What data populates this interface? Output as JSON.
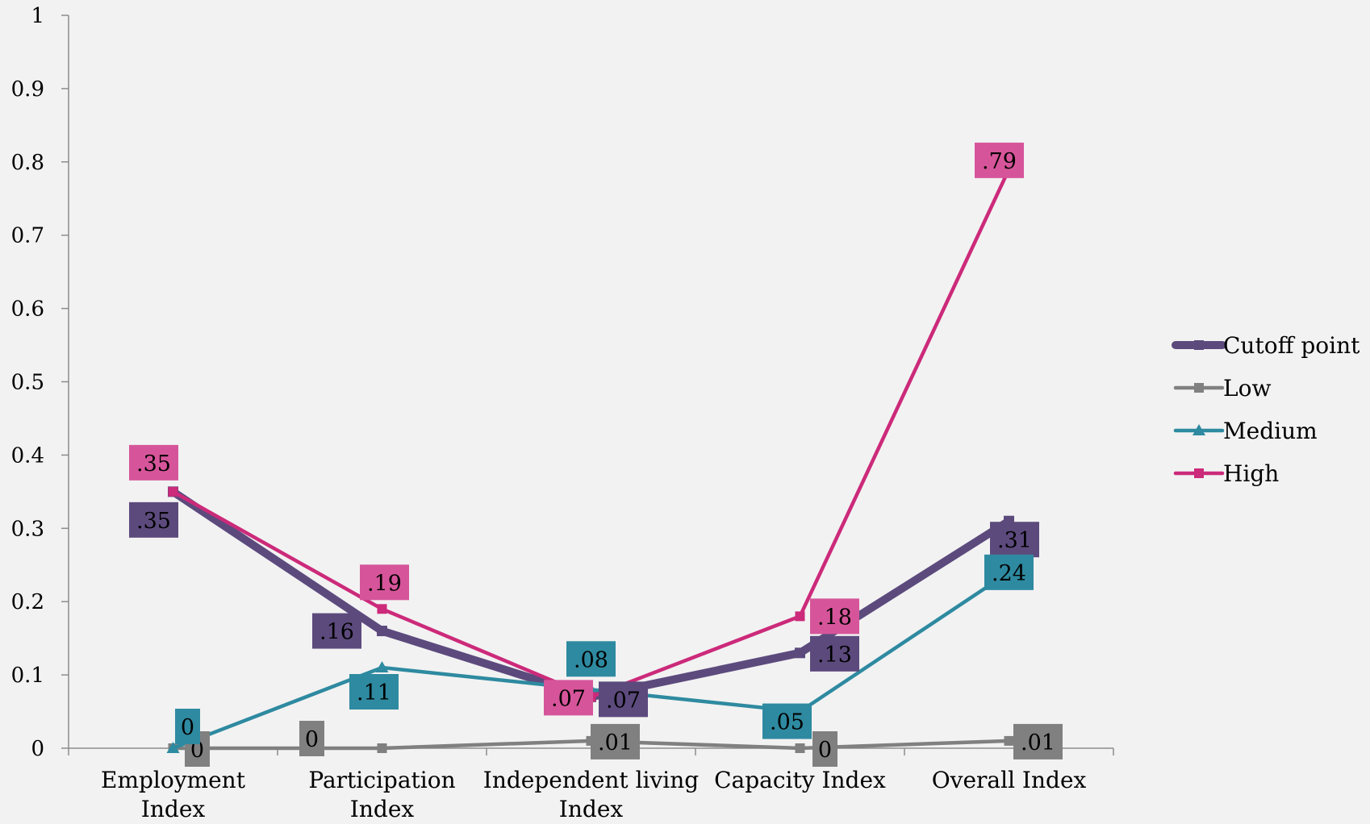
{
  "chart_data": {
    "type": "line",
    "title": "",
    "xlabel": "",
    "ylabel": "",
    "ylim": [
      0,
      1
    ],
    "yticks": [
      "0",
      "0.1",
      "0.2",
      "0.3",
      "0.4",
      "0.5",
      "0.6",
      "0.7",
      "0.8",
      "0.9",
      "1"
    ],
    "categories": [
      [
        "Employment",
        "Index"
      ],
      [
        "Participation",
        "Index"
      ],
      [
        "Independent living",
        "Index"
      ],
      [
        "Capacity Index"
      ],
      [
        "Overall Index"
      ]
    ],
    "legend_position": "right",
    "grid": false,
    "series": [
      {
        "name": "Cutoff point",
        "color": "#5c4a7d",
        "marker": "square",
        "thick": true,
        "values": [
          0.35,
          0.16,
          0.07,
          0.13,
          0.31
        ],
        "labels": [
          ".35",
          ".16",
          ".07",
          ".13",
          ".31"
        ]
      },
      {
        "name": "Low",
        "color": "#808080",
        "marker": "square",
        "thick": false,
        "values": [
          0,
          0,
          0.01,
          0,
          0.01
        ],
        "labels": [
          "0",
          "0",
          ".01",
          "0",
          ".01"
        ]
      },
      {
        "name": "Medium",
        "color": "#2e8aa0",
        "marker": "triangle",
        "thick": false,
        "values": [
          0,
          0.11,
          0.08,
          0.05,
          0.24
        ],
        "labels": [
          "0",
          ".11",
          ".08",
          ".05",
          ".24"
        ]
      },
      {
        "name": "High",
        "color": "#cc2a7a",
        "marker": "square",
        "thick": false,
        "values": [
          0.35,
          0.19,
          0.07,
          0.18,
          0.79
        ],
        "labels": [
          ".35",
          ".19",
          ".07",
          ".18",
          ".79"
        ]
      }
    ]
  }
}
